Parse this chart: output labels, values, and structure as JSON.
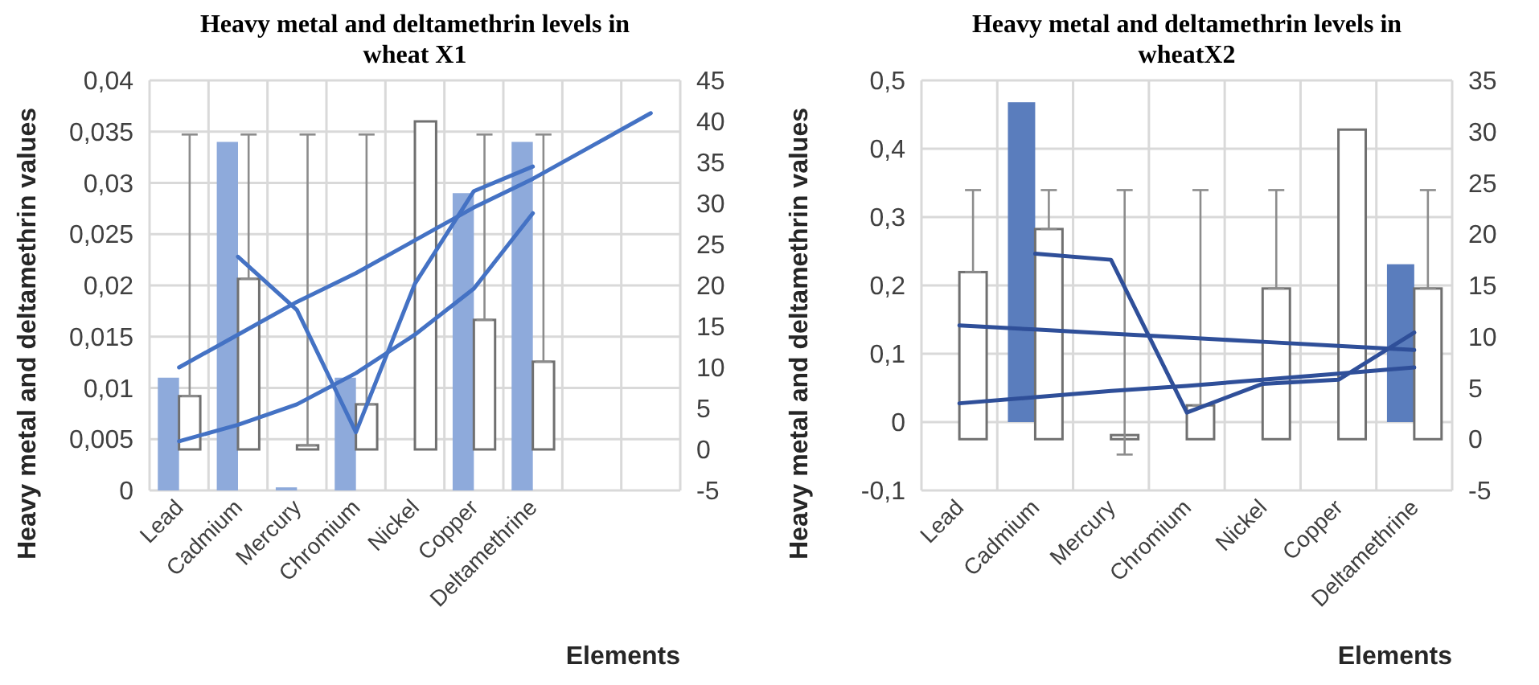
{
  "chart_data": [
    {
      "type": "bar",
      "title": "Heavy metal and deltamethrin levels in wheat X1",
      "xlabel": "Elements",
      "ylabel": "Heavy metal and deltamethrin values",
      "categories": [
        "Lead",
        "Cadmium",
        "Mercury",
        "Chromium",
        "Nickel",
        "Copper",
        "Deltamethrine",
        null,
        null
      ],
      "ylim": [
        0,
        0.04
      ],
      "yticks": [
        {
          "value": 0,
          "label": "0"
        },
        {
          "value": 0.005,
          "label": "0,005"
        },
        {
          "value": 0.01,
          "label": "0,01"
        },
        {
          "value": 0.015,
          "label": "0,015"
        },
        {
          "value": 0.02,
          "label": "0,02"
        },
        {
          "value": 0.025,
          "label": "0,025"
        },
        {
          "value": 0.03,
          "label": "0,03"
        },
        {
          "value": 0.035,
          "label": "0,035"
        },
        {
          "value": 0.04,
          "label": "0,04"
        }
      ],
      "y2lim": [
        -5,
        45
      ],
      "y2ticks": [
        -5,
        0,
        5,
        10,
        15,
        20,
        25,
        30,
        35,
        40,
        45
      ],
      "grid": true,
      "series": [
        {
          "color": "#8eaadb",
          "values": [
            0.011,
            0.034,
            0.0003,
            0.011,
            null,
            0.029,
            0.034,
            null,
            null
          ]
        },
        {
          "axis": "y2",
          "color": "#ffffff",
          "values": [
            6.5,
            20.8,
            0.5,
            5.5,
            40,
            15.8,
            10.7,
            null,
            null
          ],
          "errors": [
            [
              6.5,
              38.4
            ],
            [
              20.8,
              38.4
            ],
            [
              0.5,
              38.4
            ],
            [
              5.5,
              38.4
            ],
            null,
            [
              15.8,
              38.4
            ],
            [
              10.7,
              38.4
            ],
            null,
            null
          ]
        },
        {
          "type": "line",
          "axis": "y2",
          "color": "#4472c4",
          "values": [
            10,
            14,
            18,
            21.5,
            25.5,
            29.5,
            33,
            37,
            41
          ]
        },
        {
          "type": "line",
          "axis": "y2",
          "color": "#4472c4",
          "values": [
            1,
            3,
            5.5,
            9.3,
            14,
            19.6,
            28.8,
            null,
            null
          ]
        },
        {
          "type": "line",
          "axis": "y2",
          "color": "#4472c4",
          "values": [
            null,
            23.5,
            17,
            2.1,
            20.2,
            31.5,
            34.5,
            null,
            null
          ]
        }
      ]
    },
    {
      "type": "bar",
      "title": "Heavy metal and deltamethrin levels in wheatX2",
      "xlabel": "Elements",
      "ylabel": "Heavy metal and deltamethrin values",
      "categories": [
        "Lead",
        "Cadmium",
        "Mercury",
        "Chromium",
        "Nickel",
        "Copper",
        "Deltamethrine"
      ],
      "ylim": [
        -0.1,
        0.5
      ],
      "yticks": [
        {
          "value": -0.1,
          "label": "-0,1"
        },
        {
          "value": 0,
          "label": "0"
        },
        {
          "value": 0.1,
          "label": "0,1"
        },
        {
          "value": 0.2,
          "label": "0,2"
        },
        {
          "value": 0.3,
          "label": "0,3"
        },
        {
          "value": 0.4,
          "label": "0,4"
        },
        {
          "value": 0.5,
          "label": "0,5"
        }
      ],
      "y2lim": [
        -5,
        35
      ],
      "y2ticks": [
        -5,
        0,
        5,
        10,
        15,
        20,
        25,
        30,
        35
      ],
      "grid": true,
      "series": [
        {
          "color": "#5a7dbd",
          "values": [
            null,
            0.468,
            null,
            null,
            null,
            null,
            0.231
          ]
        },
        {
          "axis": "y2",
          "color": "#ffffff",
          "values": [
            16.3,
            20.5,
            0.4,
            3.3,
            14.7,
            30.2,
            14.7
          ],
          "errors": [
            [
              16.3,
              24.3
            ],
            [
              20.5,
              24.3
            ],
            [
              -1.5,
              24.3
            ],
            [
              3.3,
              24.3
            ],
            [
              14.7,
              24.3
            ],
            null,
            [
              14.7,
              24.3
            ]
          ]
        },
        {
          "type": "line",
          "axis": "y2",
          "color": "#2f4f99",
          "values": [
            11.1,
            10.7,
            10.3,
            9.9,
            9.5,
            9.1,
            8.7
          ]
        },
        {
          "type": "line",
          "axis": "y2",
          "color": "#2f4f99",
          "values": [
            3.5,
            4.1,
            4.7,
            5.2,
            5.8,
            6.4,
            7
          ]
        },
        {
          "type": "line",
          "axis": "y2",
          "color": "#2f4f99",
          "values": [
            null,
            18.1,
            17.5,
            2.6,
            5.4,
            5.8,
            10.4
          ]
        }
      ]
    }
  ]
}
